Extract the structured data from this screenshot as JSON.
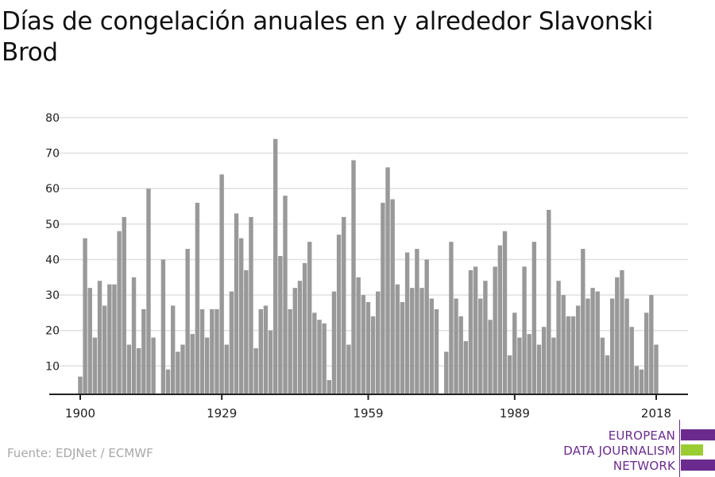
{
  "chart_data": {
    "type": "bar",
    "title": "Días de congelación anuales en y alrededor Slavonski Brod",
    "xlabel": "",
    "ylabel": "",
    "ylim": [
      2,
      80
    ],
    "yticks": [
      10,
      20,
      30,
      40,
      50,
      60,
      70,
      80
    ],
    "xticks": [
      1900,
      1929,
      1959,
      1989,
      2018
    ],
    "grid": true,
    "bar_color": "#999999",
    "x_start": 1900,
    "values": [
      7,
      46,
      32,
      18,
      34,
      27,
      33,
      33,
      48,
      52,
      16,
      35,
      15,
      26,
      60,
      18,
      0,
      40,
      9,
      27,
      14,
      16,
      43,
      19,
      56,
      26,
      18,
      26,
      26,
      64,
      16,
      31,
      53,
      46,
      37,
      52,
      15,
      26,
      27,
      20,
      74,
      41,
      58,
      26,
      32,
      34,
      39,
      45,
      25,
      23,
      22,
      6,
      31,
      47,
      52,
      16,
      68,
      35,
      30,
      28,
      24,
      31,
      56,
      66,
      57,
      33,
      28,
      42,
      32,
      43,
      32,
      40,
      29,
      26,
      0,
      14,
      45,
      29,
      24,
      17,
      37,
      38,
      29,
      34,
      23,
      38,
      44,
      48,
      13,
      25,
      18,
      38,
      19,
      45,
      16,
      21,
      54,
      18,
      34,
      30,
      24,
      24,
      27,
      43,
      29,
      32,
      31,
      18,
      13,
      29,
      35,
      37,
      29,
      21,
      10,
      9,
      25,
      30,
      16
    ]
  },
  "source": "Fuente: EDJNet / ECMWF",
  "logo": {
    "lines": [
      "EUROPEAN",
      "DATA JOURNALISM",
      "NETWORK"
    ],
    "purple": "#6b2b8e",
    "green": "#9acd32"
  }
}
